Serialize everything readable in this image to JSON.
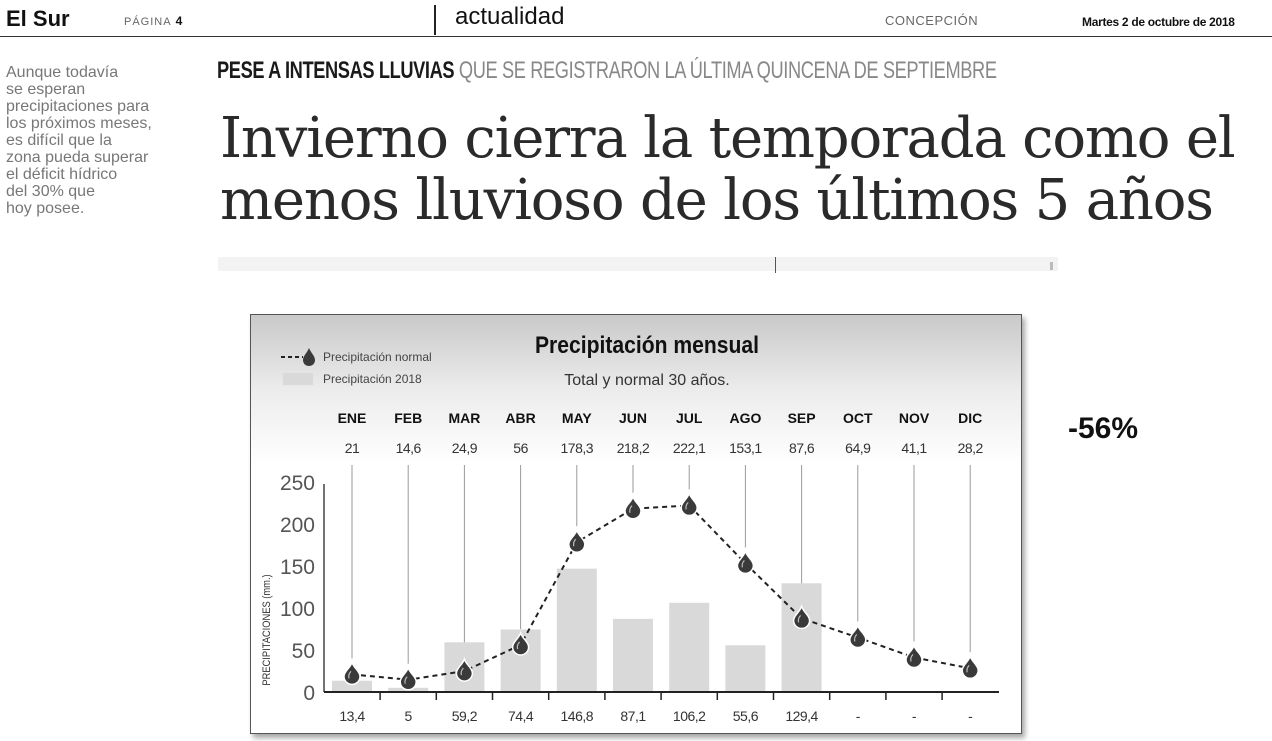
{
  "header": {
    "masthead": "El Sur",
    "page_label": "PÁGINA",
    "page_number": "4",
    "section": "actualidad",
    "city": "CONCEPCIÓN",
    "date": "Martes 2 de octubre de 2018"
  },
  "article": {
    "lede": "Aunque todavía\nse esperan\nprecipitaciones para\nlos próximos meses,\nes difícil que la\nzona pueda superar\nel déficit hídrico\ndel 30% que\nhoy posee.",
    "kicker_strong": "PESE A INTENSAS LLUVIAS",
    "kicker_light": "QUE SE REGISTRARON LA ÚLTIMA QUINCENA DE SEPTIEMBRE",
    "headline": "Invierno cierra la temporada como el\nmenos lluvioso de los últimos 5 años",
    "side_number": "-56%"
  },
  "chart_data": {
    "type": "bar",
    "title": "Precipitación mensual",
    "subtitle": "Total y normal 30 años.",
    "ylabel": "PRECIPITACIONES (mm.)",
    "ylim": [
      0,
      250
    ],
    "yticks": [
      0,
      50,
      100,
      150,
      200,
      250
    ],
    "categories": [
      "ENE",
      "FEB",
      "MAR",
      "ABR",
      "MAY",
      "JUN",
      "JUL",
      "AGO",
      "SEP",
      "OCT",
      "NOV",
      "DIC"
    ],
    "legend": {
      "normal": "Precipitación normal",
      "y2018": "Precipitación 2018"
    },
    "series": [
      {
        "name": "Precipitación normal",
        "kind": "line",
        "values": [
          21,
          14.6,
          24.9,
          56,
          178.3,
          218.2,
          222.1,
          153.1,
          87.6,
          64.9,
          41.1,
          28.2
        ],
        "labels": [
          "21",
          "14,6",
          "24,9",
          "56",
          "178,3",
          "218,2",
          "222,1",
          "153,1",
          "87,6",
          "64,9",
          "41,1",
          "28,2"
        ]
      },
      {
        "name": "Precipitación 2018",
        "kind": "bar",
        "values": [
          13.4,
          5,
          59.2,
          74.4,
          146.8,
          87.1,
          106.2,
          55.6,
          129.4,
          null,
          null,
          null
        ],
        "labels": [
          "13,4",
          "5",
          "59,2",
          "74,4",
          "146,8",
          "87,1",
          "106,2",
          "55,6",
          "129,4",
          "-",
          "-",
          "-"
        ]
      }
    ],
    "colors": {
      "bar": "#d9d9d9",
      "line": "#222222",
      "drop": "#3a3a3a"
    }
  }
}
